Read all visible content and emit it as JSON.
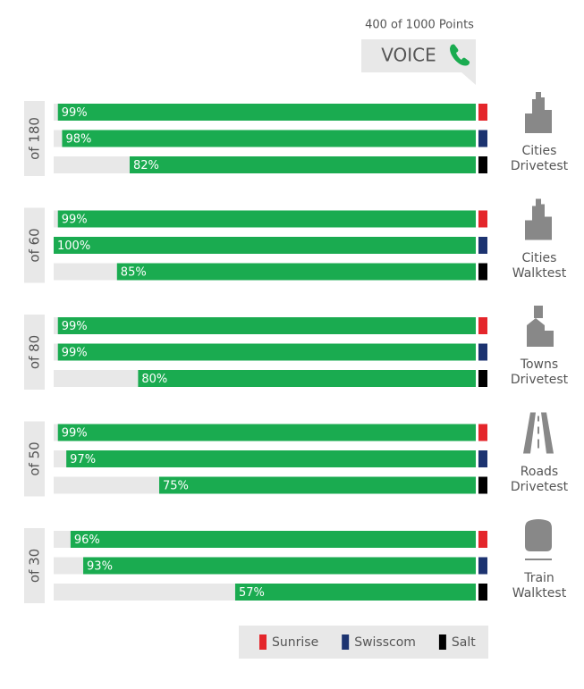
{
  "header": {
    "points": "400 of 1000 Points",
    "title": "VOICE"
  },
  "chart_data": {
    "type": "bar",
    "orientation": "horizontal",
    "direction": "right-to-left",
    "groups": [
      "of 180",
      "of 60",
      "of 80",
      "of 50",
      "of 30"
    ],
    "categories": [
      "Cities Drivetest",
      "Cities Walktest",
      "Towns Drivetest",
      "Roads Drivetest",
      "Train Walktest"
    ],
    "bar_color": "#1aab50",
    "xlim": [
      0,
      100
    ],
    "series": [
      {
        "name": "Sunrise",
        "color": "#e4262b",
        "values": [
          99,
          99,
          99,
          99,
          96
        ],
        "value_labels": [
          "99%",
          "99%",
          "99%",
          "99%",
          "96%"
        ]
      },
      {
        "name": "Swisscom",
        "color": "#1c3370",
        "values": [
          98,
          100,
          99,
          97,
          93
        ],
        "value_labels": [
          "98%",
          "100%",
          "99%",
          "97%",
          "93%"
        ]
      },
      {
        "name": "Salt",
        "color": "#000000",
        "values": [
          82,
          85,
          80,
          75,
          57
        ],
        "value_labels": [
          "82%",
          "85%",
          "80%",
          "75%",
          "57%"
        ]
      }
    ]
  }
}
